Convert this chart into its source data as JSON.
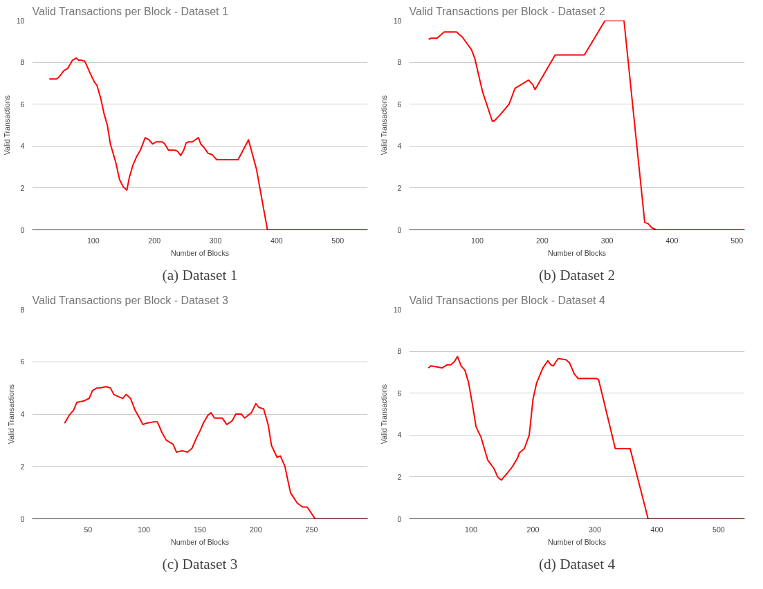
{
  "chart_data": [
    {
      "type": "line",
      "title": "Valid Transactions per Block - Dataset 1",
      "xlabel": "Number of Blocks",
      "ylabel": "Valid Transactions",
      "annotations": [
        "(a) Dataset 1"
      ],
      "color": "#ff0000",
      "grid": "y",
      "xlim": [
        0,
        549
      ],
      "ylim": [
        0,
        10
      ],
      "xticks": [
        100,
        200,
        300,
        400,
        500
      ],
      "yticks": [
        0,
        2,
        4,
        6,
        8,
        10
      ],
      "x": [
        28,
        40,
        44,
        52,
        58,
        66,
        72,
        76,
        80,
        86,
        90,
        96,
        102,
        106,
        112,
        118,
        123,
        128,
        137,
        143,
        149,
        155,
        159,
        165,
        171,
        177,
        181,
        185,
        191,
        197,
        203,
        209,
        213,
        217,
        223,
        234,
        238,
        243,
        248,
        252,
        256,
        262,
        272,
        276,
        282,
        288,
        294,
        302,
        337,
        354,
        367,
        385,
        549
      ],
      "values": [
        7.2,
        7.2,
        7.3,
        7.6,
        7.7,
        8.1,
        8.2,
        8.1,
        8.1,
        8.05,
        7.8,
        7.4,
        7.05,
        6.9,
        6.3,
        5.5,
        5.0,
        4.1,
        3.2,
        2.4,
        2.05,
        1.9,
        2.5,
        3.1,
        3.5,
        3.8,
        4.1,
        4.4,
        4.3,
        4.1,
        4.2,
        4.2,
        4.2,
        4.1,
        3.8,
        3.8,
        3.75,
        3.55,
        3.8,
        4.15,
        4.2,
        4.2,
        4.4,
        4.1,
        3.9,
        3.65,
        3.6,
        3.35,
        3.35,
        4.3,
        2.9,
        0,
        0
      ]
    },
    {
      "type": "line",
      "title": "Valid Transactions per Block - Dataset 2",
      "xlabel": "Number of Blocks",
      "ylabel": "Valid Transactions",
      "annotations": [
        "(b) Dataset 2"
      ],
      "color": "#ff0000",
      "grid": "y",
      "xlim": [
        -5,
        512
      ],
      "ylim": [
        0,
        10
      ],
      "xticks": [
        100,
        200,
        300,
        400,
        500
      ],
      "yticks": [
        0,
        2,
        4,
        6,
        8,
        10
      ],
      "x": [
        25,
        29,
        38,
        49,
        68,
        77,
        91,
        96,
        108,
        123,
        126,
        134,
        149,
        158,
        179,
        185,
        189,
        220,
        265,
        297,
        326,
        358,
        363,
        369,
        376,
        512
      ],
      "values": [
        9.1,
        9.15,
        9.15,
        9.45,
        9.45,
        9.2,
        8.6,
        8.2,
        6.6,
        5.2,
        5.2,
        5.45,
        6.0,
        6.75,
        7.15,
        6.95,
        6.7,
        8.35,
        8.35,
        10,
        10,
        0.35,
        0.3,
        0.1,
        0,
        0
      ]
    },
    {
      "type": "line",
      "title": "Valid Transactions per Block - Dataset 3",
      "xlabel": "Number of Blocks",
      "ylabel": "Valid Transactions",
      "annotations": [
        "(c) Dataset 3"
      ],
      "color": "#ff0000",
      "grid": "y",
      "xlim": [
        0,
        300
      ],
      "ylim": [
        0,
        8
      ],
      "xticks": [
        50,
        100,
        150,
        200,
        250
      ],
      "yticks": [
        0,
        2,
        4,
        6,
        8
      ],
      "x": [
        29,
        33,
        37,
        40,
        46,
        51,
        54,
        58,
        61,
        66,
        70,
        73,
        78,
        81,
        84,
        88,
        92,
        96,
        99,
        102,
        108,
        112,
        116,
        120,
        126,
        129,
        134,
        139,
        143,
        147,
        150,
        153,
        157,
        160,
        163,
        170,
        174,
        179,
        182,
        187,
        190,
        196,
        200,
        203,
        207,
        211,
        214,
        219,
        222,
        226,
        231,
        237,
        242,
        246,
        253,
        300
      ],
      "values": [
        3.65,
        3.95,
        4.15,
        4.45,
        4.5,
        4.6,
        4.9,
        5.0,
        5.0,
        5.05,
        5.0,
        4.75,
        4.65,
        4.6,
        4.75,
        4.6,
        4.15,
        3.85,
        3.6,
        3.65,
        3.7,
        3.7,
        3.3,
        3.0,
        2.85,
        2.55,
        2.6,
        2.55,
        2.7,
        3.1,
        3.35,
        3.65,
        3.95,
        4.05,
        3.85,
        3.85,
        3.6,
        3.75,
        4.0,
        4.0,
        3.85,
        4.05,
        4.4,
        4.25,
        4.2,
        3.6,
        2.8,
        2.35,
        2.4,
        2.0,
        1.0,
        0.6,
        0.45,
        0.45,
        0,
        0
      ]
    },
    {
      "type": "line",
      "title": "Valid Transactions per Block - Dataset 4",
      "xlabel": "Number of Blocks",
      "ylabel": "Valid Transactions",
      "annotations": [
        "(d) Dataset 4"
      ],
      "color": "#ff0000",
      "grid": "y",
      "xlim": [
        0,
        542
      ],
      "ylim": [
        0,
        10
      ],
      "xticks": [
        100,
        200,
        300,
        400,
        500
      ],
      "yticks": [
        0,
        2,
        4,
        6,
        8,
        10
      ],
      "x": [
        31,
        35,
        45,
        53,
        61,
        67,
        73,
        78,
        84,
        90,
        96,
        102,
        108,
        116,
        122,
        127,
        137,
        143,
        149,
        159,
        167,
        175,
        178,
        186,
        194,
        200,
        206,
        216,
        224,
        229,
        233,
        237,
        241,
        253,
        259,
        267,
        273,
        302,
        306,
        333,
        357,
        386,
        542
      ],
      "values": [
        7.2,
        7.3,
        7.25,
        7.2,
        7.35,
        7.35,
        7.5,
        7.75,
        7.3,
        7.1,
        6.5,
        5.5,
        4.4,
        3.9,
        3.3,
        2.8,
        2.4,
        2.0,
        1.85,
        2.2,
        2.5,
        2.9,
        3.15,
        3.35,
        4.0,
        5.7,
        6.5,
        7.2,
        7.55,
        7.35,
        7.3,
        7.5,
        7.65,
        7.6,
        7.45,
        6.9,
        6.7,
        6.7,
        6.65,
        3.35,
        3.35,
        0,
        0
      ]
    }
  ]
}
